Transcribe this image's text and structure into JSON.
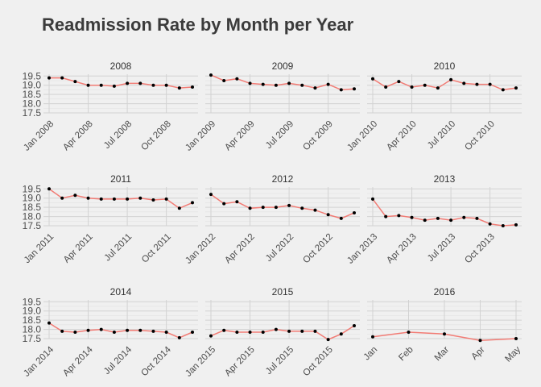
{
  "chart_data": {
    "type": "line",
    "title": "Readmission Rate by Month per Year",
    "ylim": [
      17.5,
      19.6
    ],
    "yticks": [
      "19.5",
      "19.0",
      "18.5",
      "18.0",
      "17.5"
    ],
    "ytick_values": [
      19.5,
      19.0,
      18.5,
      18.0,
      17.5
    ],
    "grid": true,
    "colors": {
      "line": "#f27c75",
      "points": "#000000",
      "background": "#f0f0f0",
      "grid": "#d2d2d2"
    },
    "panels": [
      {
        "year": "2008",
        "x_labels": [
          "Jan 2008",
          "Apr 2008",
          "Jul 2008",
          "Oct 2008"
        ],
        "values": [
          19.4,
          19.4,
          19.2,
          19.0,
          19.0,
          18.95,
          19.1,
          19.1,
          19.0,
          19.0,
          18.85,
          18.9
        ]
      },
      {
        "year": "2009",
        "x_labels": [
          "Jan 2009",
          "Apr 2009",
          "Jul 2009",
          "Oct 2009"
        ],
        "values": [
          19.55,
          19.25,
          19.35,
          19.1,
          19.05,
          19.0,
          19.1,
          19.0,
          18.85,
          19.05,
          18.75,
          18.8
        ]
      },
      {
        "year": "2010",
        "x_labels": [
          "Jan 2010",
          "Apr 2010",
          "Jul 2010",
          "Oct 2010"
        ],
        "values": [
          19.35,
          18.9,
          19.2,
          18.9,
          19.0,
          18.85,
          19.3,
          19.1,
          19.05,
          19.05,
          18.75,
          18.85
        ]
      },
      {
        "year": "2011",
        "x_labels": [
          "Jan 2011",
          "Apr 2011",
          "Jul 2011",
          "Oct 2011"
        ],
        "values": [
          19.5,
          19.0,
          19.15,
          19.0,
          18.95,
          18.95,
          18.95,
          19.0,
          18.9,
          18.95,
          18.45,
          18.75
        ]
      },
      {
        "year": "2012",
        "x_labels": [
          "Jan 2012",
          "Apr 2012",
          "Jul 2012",
          "Oct 2012"
        ],
        "values": [
          19.2,
          18.7,
          18.8,
          18.45,
          18.5,
          18.5,
          18.6,
          18.45,
          18.35,
          18.1,
          17.9,
          18.2
        ]
      },
      {
        "year": "2013",
        "x_labels": [
          "Jan 2013",
          "Apr 2013",
          "Jul 2013",
          "Oct 2013"
        ],
        "values": [
          18.95,
          18.0,
          18.05,
          17.95,
          17.8,
          17.9,
          17.8,
          17.95,
          17.9,
          17.6,
          17.5,
          17.55
        ]
      },
      {
        "year": "2014",
        "x_labels": [
          "Jan 2014",
          "Apr 2014",
          "Jul 2014",
          "Oct 2014"
        ],
        "values": [
          18.35,
          17.9,
          17.85,
          17.95,
          18.0,
          17.85,
          17.95,
          17.95,
          17.9,
          17.85,
          17.55,
          17.85
        ]
      },
      {
        "year": "2015",
        "x_labels": [
          "Jan 2015",
          "Apr 2015",
          "Jul 2015",
          "Oct 2015"
        ],
        "values": [
          17.65,
          17.95,
          17.85,
          17.85,
          17.85,
          18.0,
          17.9,
          17.9,
          17.9,
          17.45,
          17.75,
          18.2
        ]
      },
      {
        "year": "2016",
        "x_labels": [
          "Jan",
          "Feb",
          "Mar",
          "Apr",
          "May"
        ],
        "values": [
          17.6,
          17.85,
          17.75,
          17.4,
          17.5
        ]
      }
    ]
  }
}
